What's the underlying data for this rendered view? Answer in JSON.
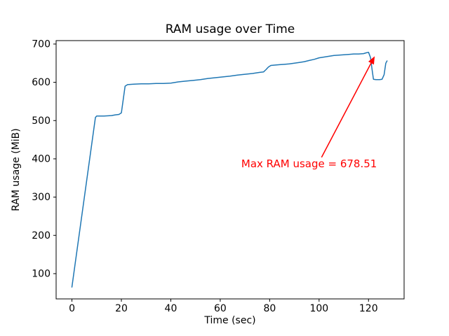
{
  "chart_data": {
    "type": "line",
    "title": "RAM usage over Time",
    "xlabel": "Time (sec)",
    "ylabel": "RAM usage (MiB)",
    "xlim": [
      -6.4,
      134.4
    ],
    "ylim": [
      34,
      709
    ],
    "xticks": [
      0,
      20,
      40,
      60,
      80,
      100,
      120
    ],
    "yticks": [
      100,
      200,
      300,
      400,
      500,
      600,
      700
    ],
    "grid": false,
    "legend": "none",
    "line_color": "#1f77b4",
    "background_color": "#ffffff",
    "series": [
      {
        "name": "RAM usage",
        "x": [
          0,
          9.5,
          10,
          13,
          16,
          17.5,
          19,
          20,
          21.5,
          22.5,
          25,
          28,
          31,
          34,
          37,
          40,
          43,
          46,
          49,
          52,
          55,
          58,
          61,
          64,
          67,
          70,
          73,
          76,
          77.5,
          78.5,
          79.5,
          80.5,
          82,
          84,
          86,
          88,
          90,
          92,
          94,
          96,
          98,
          100,
          102,
          104,
          106,
          108,
          110,
          112,
          114,
          116,
          118,
          119,
          120,
          120.8,
          121.5,
          122,
          123,
          124.5,
          125.5,
          126.3,
          127,
          127.5
        ],
        "y": [
          65,
          508,
          512,
          512,
          513,
          515,
          516,
          520,
          590,
          594,
          595,
          596,
          596,
          597,
          597,
          598,
          601,
          603,
          605,
          607,
          610,
          612,
          614,
          616,
          619,
          621,
          623,
          626,
          627,
          633,
          640,
          644,
          645,
          646,
          647,
          648,
          650,
          652,
          654,
          657,
          660,
          664,
          666,
          668,
          670,
          671,
          672,
          673,
          674,
          674,
          675,
          677,
          678.51,
          665,
          630,
          608,
          607,
          607,
          608,
          620,
          650,
          656
        ]
      }
    ],
    "max_value": 678.51,
    "annotation": {
      "text": "Max RAM usage = 678.51",
      "color": "#ff0000",
      "text_pos": [
        68.5,
        378
      ],
      "arrow_start": [
        101,
        404
      ],
      "arrow_end": [
        122.5,
        668
      ]
    }
  }
}
